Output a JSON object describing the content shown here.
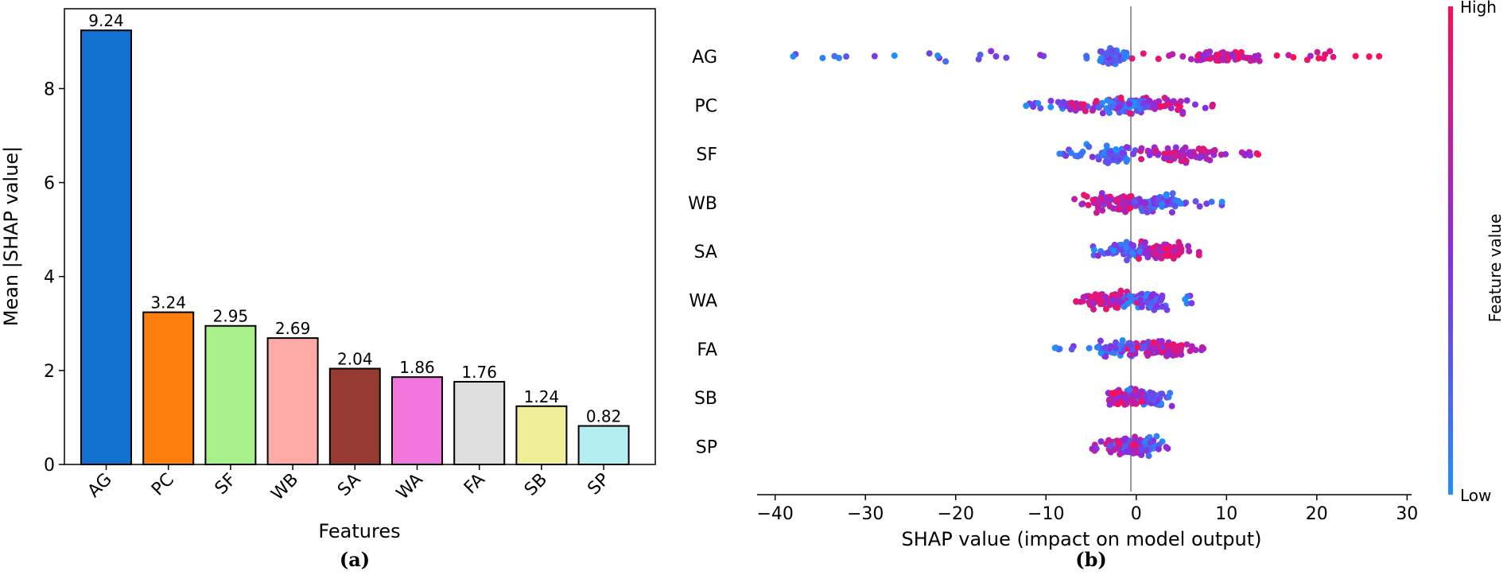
{
  "chart_data": [
    {
      "type": "bar",
      "panel_label": "(a)",
      "categories": [
        "AG",
        "PC",
        "SF",
        "WB",
        "SA",
        "WA",
        "FA",
        "SB",
        "SP"
      ],
      "values": [
        9.24,
        3.24,
        2.95,
        2.69,
        2.04,
        1.86,
        1.76,
        1.24,
        0.82
      ],
      "value_labels": [
        "9.24",
        "3.24",
        "2.95",
        "2.69",
        "2.04",
        "1.86",
        "1.76",
        "1.24",
        "0.82"
      ],
      "colors": [
        "#1170d0",
        "#ff7f0e",
        "#a8f08a",
        "#ffaaa5",
        "#963a32",
        "#f176de",
        "#dedede",
        "#f0ee98",
        "#b4eef2"
      ],
      "xlabel": "Features",
      "ylabel": "Mean |SHAP value|",
      "ylim": [
        0,
        9.7
      ],
      "yticks": [
        0,
        2,
        4,
        6,
        8
      ],
      "grid": false
    },
    {
      "type": "scatter",
      "subtype": "beeswarm",
      "panel_label": "(b)",
      "features": [
        "AG",
        "PC",
        "SF",
        "WB",
        "SA",
        "WA",
        "FA",
        "SB",
        "SP"
      ],
      "xlabel": "SHAP value (impact on model output)",
      "xlim": [
        -42,
        30.5
      ],
      "xticks": [
        -40,
        -30,
        -20,
        -10,
        0,
        10,
        20,
        30
      ],
      "xtick_labels": [
        "−40",
        "−30",
        "−20",
        "−10",
        "0",
        "10",
        "20",
        "30"
      ],
      "colorbar": {
        "label": "Feature value",
        "high_label": "High",
        "low_label": "Low",
        "low_color": "#1e90ff",
        "mid_color": "#8a2be2",
        "high_color": "#ff0d57"
      },
      "distribution": [
        {
          "feature": "AG",
          "low_range": [
            -38,
            -2
          ],
          "low_core": [
            -4,
            -1
          ],
          "high_range": [
            -1,
            27
          ],
          "high_core": [
            6,
            14
          ],
          "outliers": [
            [
              -38,
              "low"
            ],
            [
              24.3,
              "high"
            ],
            [
              25.8,
              "high"
            ],
            [
              26.9,
              "high"
            ],
            [
              17.4,
              "high"
            ]
          ]
        },
        {
          "feature": "PC",
          "low_range": [
            -12,
            2
          ],
          "low_core": [
            -3,
            1
          ],
          "high_range": [
            -9,
            9
          ],
          "high_core": [
            -8,
            6
          ],
          "outliers": [
            [
              -12.2,
              "low"
            ]
          ]
        },
        {
          "feature": "SF",
          "low_range": [
            -8.5,
            2
          ],
          "low_core": [
            -3.5,
            -1
          ],
          "high_range": [
            -2,
            13.5
          ],
          "high_core": [
            2,
            9
          ],
          "outliers": [
            [
              13.5,
              "high"
            ]
          ]
        },
        {
          "feature": "WB",
          "low_range": [
            -4,
            9.5
          ],
          "low_core": [
            -1,
            5
          ],
          "high_range": [
            -7.5,
            3
          ],
          "high_core": [
            -5,
            0
          ],
          "outliers": [
            [
              9.5,
              "low"
            ]
          ]
        },
        {
          "feature": "SA",
          "low_range": [
            -5,
            1
          ],
          "low_core": [
            -3,
            0
          ],
          "high_range": [
            -1,
            7
          ],
          "high_core": [
            0,
            5
          ],
          "outliers": []
        },
        {
          "feature": "WA",
          "low_range": [
            -2,
            7
          ],
          "low_core": [
            -1,
            3
          ],
          "high_range": [
            -7.5,
            1
          ],
          "high_core": [
            -6,
            -1
          ],
          "outliers": []
        },
        {
          "feature": "FA",
          "low_range": [
            -9,
            4
          ],
          "low_core": [
            -4,
            1
          ],
          "high_range": [
            -1,
            7.5
          ],
          "high_core": [
            1,
            5
          ],
          "outliers": [
            [
              -9,
              "low"
            ]
          ]
        },
        {
          "feature": "SB",
          "low_range": [
            -2,
            4.5
          ],
          "low_core": [
            -1,
            3
          ],
          "high_range": [
            -3.8,
            1
          ],
          "high_core": [
            -3,
            0
          ],
          "outliers": []
        },
        {
          "feature": "SP",
          "low_range": [
            -3,
            3.5
          ],
          "low_core": [
            -1.5,
            2
          ],
          "high_range": [
            -5,
            1
          ],
          "high_core": [
            -2,
            0.5
          ],
          "outliers": []
        }
      ]
    }
  ]
}
